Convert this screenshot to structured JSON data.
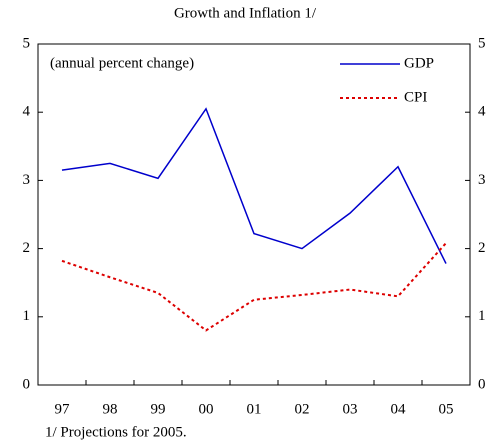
{
  "chart_data": {
    "type": "line",
    "title": "Growth and Inflation 1/",
    "annotation": "(annual percent change)",
    "footnote": "1/ Projections for 2005.",
    "categories": [
      "97",
      "98",
      "99",
      "00",
      "01",
      "02",
      "03",
      "04",
      "05"
    ],
    "series": [
      {
        "name": "GDP",
        "color": "#0000cc",
        "dash": "solid",
        "values": [
          3.15,
          3.25,
          3.03,
          4.05,
          2.22,
          2.0,
          2.52,
          3.2,
          1.78
        ]
      },
      {
        "name": "CPI",
        "color": "#dd0000",
        "dash": "dotted",
        "values": [
          1.82,
          1.58,
          1.35,
          0.8,
          1.25,
          1.32,
          1.4,
          1.3,
          2.08
        ]
      }
    ],
    "ylim": [
      0,
      5
    ],
    "yticks": [
      0,
      1,
      2,
      3,
      4,
      5
    ],
    "y2lim": [
      0,
      5
    ],
    "y2ticks": [
      0,
      1,
      2,
      3,
      4,
      5
    ],
    "legend": "upper right",
    "grid": false
  }
}
